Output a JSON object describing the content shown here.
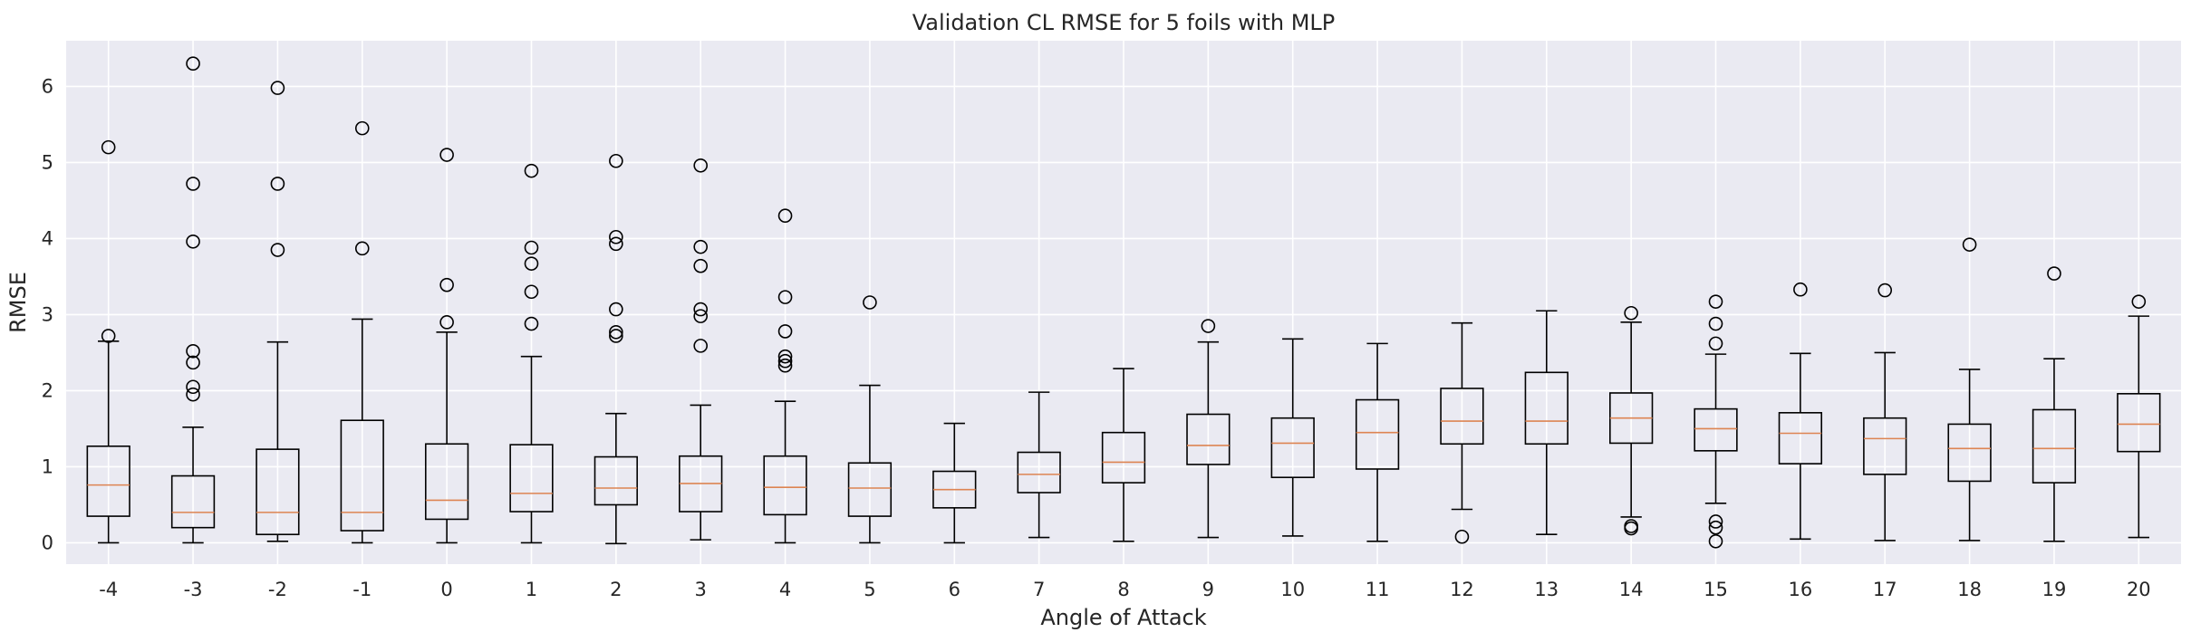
{
  "chart_data": {
    "type": "boxplot",
    "title": "Validation CL RMSE for 5 foils with MLP",
    "xlabel": "Angle of Attack",
    "ylabel": "RMSE",
    "ylim": [
      -0.28,
      6.6
    ],
    "yticks": [
      0,
      1,
      2,
      3,
      4,
      5,
      6
    ],
    "grid": true,
    "colors": {
      "plot_background": "#eaeaf2",
      "grid": "#ffffff",
      "box": "#000000",
      "median": "#dd8452",
      "text": "#262626"
    },
    "categories": [
      "-4",
      "-3",
      "-2",
      "-1",
      "0",
      "1",
      "2",
      "3",
      "4",
      "5",
      "6",
      "7",
      "8",
      "9",
      "10",
      "11",
      "12",
      "13",
      "14",
      "15",
      "16",
      "17",
      "18",
      "19",
      "20"
    ],
    "boxes": [
      {
        "x": "-4",
        "whislo": 0.0,
        "q1": 0.35,
        "med": 0.76,
        "q3": 1.27,
        "whishi": 2.65,
        "fliers": [
          5.2,
          2.72
        ]
      },
      {
        "x": "-3",
        "whislo": 0.0,
        "q1": 0.2,
        "med": 0.4,
        "q3": 0.88,
        "whishi": 1.52,
        "fliers": [
          6.3,
          4.72,
          3.96,
          2.52,
          2.37,
          2.05,
          1.95
        ]
      },
      {
        "x": "-2",
        "whislo": 0.02,
        "q1": 0.11,
        "med": 0.4,
        "q3": 1.23,
        "whishi": 2.64,
        "fliers": [
          5.98,
          4.72,
          3.85
        ]
      },
      {
        "x": "-1",
        "whislo": 0.0,
        "q1": 0.16,
        "med": 0.4,
        "q3": 1.61,
        "whishi": 2.94,
        "fliers": [
          5.45,
          3.87
        ]
      },
      {
        "x": "0",
        "whislo": 0.0,
        "q1": 0.31,
        "med": 0.56,
        "q3": 1.3,
        "whishi": 2.77,
        "fliers": [
          5.1,
          3.39,
          2.9
        ]
      },
      {
        "x": "1",
        "whislo": 0.0,
        "q1": 0.41,
        "med": 0.65,
        "q3": 1.29,
        "whishi": 2.45,
        "fliers": [
          4.89,
          3.88,
          3.67,
          3.3,
          2.88
        ]
      },
      {
        "x": "2",
        "whislo": -0.01,
        "q1": 0.5,
        "med": 0.72,
        "q3": 1.13,
        "whishi": 1.7,
        "fliers": [
          5.02,
          4.02,
          3.93,
          3.07,
          2.77,
          2.72
        ]
      },
      {
        "x": "3",
        "whislo": 0.04,
        "q1": 0.41,
        "med": 0.78,
        "q3": 1.14,
        "whishi": 1.81,
        "fliers": [
          4.96,
          3.89,
          3.64,
          3.07,
          2.98,
          2.59
        ]
      },
      {
        "x": "4",
        "whislo": 0.0,
        "q1": 0.37,
        "med": 0.73,
        "q3": 1.14,
        "whishi": 1.86,
        "fliers": [
          4.3,
          3.23,
          2.78,
          2.45,
          2.39,
          2.33
        ]
      },
      {
        "x": "5",
        "whislo": 0.0,
        "q1": 0.35,
        "med": 0.72,
        "q3": 1.05,
        "whishi": 2.07,
        "fliers": [
          3.16
        ]
      },
      {
        "x": "6",
        "whislo": 0.0,
        "q1": 0.46,
        "med": 0.7,
        "q3": 0.94,
        "whishi": 1.57,
        "fliers": []
      },
      {
        "x": "7",
        "whislo": 0.07,
        "q1": 0.66,
        "med": 0.9,
        "q3": 1.19,
        "whishi": 1.98,
        "fliers": []
      },
      {
        "x": "8",
        "whislo": 0.02,
        "q1": 0.79,
        "med": 1.06,
        "q3": 1.45,
        "whishi": 2.29,
        "fliers": []
      },
      {
        "x": "9",
        "whislo": 0.07,
        "q1": 1.03,
        "med": 1.28,
        "q3": 1.69,
        "whishi": 2.64,
        "fliers": [
          2.85
        ]
      },
      {
        "x": "10",
        "whislo": 0.09,
        "q1": 0.86,
        "med": 1.31,
        "q3": 1.64,
        "whishi": 2.68,
        "fliers": []
      },
      {
        "x": "11",
        "whislo": 0.02,
        "q1": 0.97,
        "med": 1.45,
        "q3": 1.88,
        "whishi": 2.62,
        "fliers": []
      },
      {
        "x": "12",
        "whislo": 0.44,
        "q1": 1.3,
        "med": 1.6,
        "q3": 2.03,
        "whishi": 2.89,
        "fliers": [
          0.08
        ]
      },
      {
        "x": "13",
        "whislo": 0.11,
        "q1": 1.3,
        "med": 1.6,
        "q3": 2.24,
        "whishi": 3.05,
        "fliers": []
      },
      {
        "x": "14",
        "whislo": 0.34,
        "q1": 1.31,
        "med": 1.64,
        "q3": 1.97,
        "whishi": 2.9,
        "fliers": [
          3.02,
          0.22,
          0.19
        ]
      },
      {
        "x": "15",
        "whislo": 0.52,
        "q1": 1.21,
        "med": 1.5,
        "q3": 1.76,
        "whishi": 2.48,
        "fliers": [
          3.17,
          2.88,
          2.62,
          0.28,
          0.2,
          0.02
        ]
      },
      {
        "x": "16",
        "whislo": 0.05,
        "q1": 1.04,
        "med": 1.44,
        "q3": 1.71,
        "whishi": 2.49,
        "fliers": [
          3.33
        ]
      },
      {
        "x": "17",
        "whislo": 0.03,
        "q1": 0.9,
        "med": 1.37,
        "q3": 1.64,
        "whishi": 2.5,
        "fliers": [
          3.32
        ]
      },
      {
        "x": "18",
        "whislo": 0.03,
        "q1": 0.81,
        "med": 1.24,
        "q3": 1.56,
        "whishi": 2.28,
        "fliers": [
          3.92
        ]
      },
      {
        "x": "19",
        "whislo": 0.02,
        "q1": 0.79,
        "med": 1.24,
        "q3": 1.75,
        "whishi": 2.42,
        "fliers": [
          3.54
        ]
      },
      {
        "x": "20",
        "whislo": 0.07,
        "q1": 1.2,
        "med": 1.56,
        "q3": 1.96,
        "whishi": 2.98,
        "fliers": [
          3.17
        ]
      }
    ]
  }
}
